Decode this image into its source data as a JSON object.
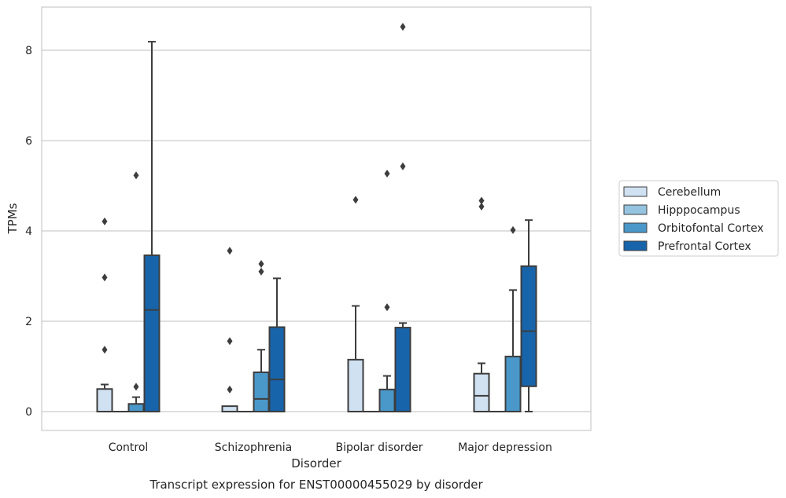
{
  "chart_data": {
    "type": "box",
    "caption": "Transcript expression for ENST00000455029 by disorder",
    "xlabel": "Disorder",
    "ylabel": "TPMs",
    "ylim": [
      -0.4,
      9.0
    ],
    "yticks": [
      0,
      2,
      4,
      6,
      8
    ],
    "grid": "horizontal",
    "legend_position": "right",
    "categories": [
      "Control",
      "Schizophrenia",
      "Bipolar disorder",
      "Major depression"
    ],
    "series": [
      {
        "name": "Cerebellum",
        "color": "#d0e1f2",
        "boxes": [
          {
            "whisker_low": 0,
            "q1": 0,
            "median": 0,
            "q3": 0.5,
            "whisker_high": 0.6,
            "outliers": [
              1.37,
              2.97,
              4.21
            ]
          },
          {
            "whisker_low": 0,
            "q1": 0,
            "median": 0,
            "q3": 0.12,
            "whisker_high": 0.12,
            "outliers": [
              0.49,
              1.56,
              3.56
            ]
          },
          {
            "whisker_low": 0,
            "q1": 0,
            "median": 0,
            "q3": 1.15,
            "whisker_high": 2.34,
            "outliers": [
              4.69
            ]
          },
          {
            "whisker_low": 0,
            "q1": 0,
            "median": 0.35,
            "q3": 0.84,
            "whisker_high": 1.07,
            "outliers": [
              4.54,
              4.67
            ]
          }
        ]
      },
      {
        "name": "Hipppocampus",
        "color": "#94c4df",
        "boxes": [
          {
            "whisker_low": 0,
            "q1": 0,
            "median": 0,
            "q3": 0,
            "whisker_high": 0,
            "outliers": []
          },
          {
            "whisker_low": 0,
            "q1": 0,
            "median": 0,
            "q3": 0,
            "whisker_high": 0,
            "outliers": []
          },
          {
            "whisker_low": 0,
            "q1": 0,
            "median": 0,
            "q3": 0,
            "whisker_high": 0,
            "outliers": []
          },
          {
            "whisker_low": 0,
            "q1": 0,
            "median": 0,
            "q3": 0,
            "whisker_high": 0,
            "outliers": []
          }
        ]
      },
      {
        "name": "Orbitofontal Cortex",
        "color": "#4a98c9",
        "boxes": [
          {
            "whisker_low": 0,
            "q1": 0,
            "median": 0,
            "q3": 0.17,
            "whisker_high": 0.32,
            "outliers": [
              0.55,
              5.23
            ]
          },
          {
            "whisker_low": 0,
            "q1": 0,
            "median": 0.28,
            "q3": 0.87,
            "whisker_high": 1.37,
            "outliers": [
              3.1,
              3.27
            ]
          },
          {
            "whisker_low": 0,
            "q1": 0,
            "median": 0,
            "q3": 0.49,
            "whisker_high": 0.79,
            "outliers": [
              2.31,
              5.27
            ]
          },
          {
            "whisker_low": 0,
            "q1": 0,
            "median": 0,
            "q3": 1.22,
            "whisker_high": 2.69,
            "outliers": [
              4.02
            ]
          }
        ]
      },
      {
        "name": "Prefrontal Cortex",
        "color": "#1764ab",
        "boxes": [
          {
            "whisker_low": 0,
            "q1": 0,
            "median": 2.25,
            "q3": 3.46,
            "whisker_high": 8.19,
            "outliers": []
          },
          {
            "whisker_low": 0,
            "q1": 0,
            "median": 0.71,
            "q3": 1.87,
            "whisker_high": 2.95,
            "outliers": []
          },
          {
            "whisker_low": 0,
            "q1": 0,
            "median": 0,
            "q3": 1.86,
            "whisker_high": 1.96,
            "outliers": [
              5.43,
              8.52
            ]
          },
          {
            "whisker_low": 0,
            "q1": 0.56,
            "median": 1.78,
            "q3": 3.22,
            "whisker_high": 4.24,
            "outliers": []
          }
        ]
      }
    ]
  }
}
